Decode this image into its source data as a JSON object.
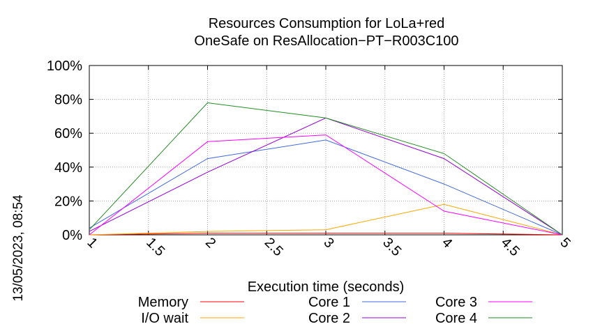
{
  "chart_data": {
    "type": "line",
    "title": "Resources Consumption for LoLa+red",
    "subtitle": "OneSafe on ResAllocation−PT−R003C100",
    "xlabel": "Execution time (seconds)",
    "ylabel": "",
    "side_label": "13/05/2023, 08:54",
    "xlim": [
      1,
      5
    ],
    "ylim": [
      0,
      100
    ],
    "x_ticks": [
      "1",
      "1.5",
      "2",
      "2.5",
      "3",
      "3.5",
      "4",
      "4.5",
      "5"
    ],
    "y_ticks": [
      "0%",
      "20%",
      "40%",
      "60%",
      "80%",
      "100%"
    ],
    "grid": true,
    "legend_position": "bottom",
    "x": [
      1,
      2,
      3,
      4,
      5
    ],
    "series": [
      {
        "name": "Memory",
        "color": "#ff0000",
        "values": [
          0,
          1,
          1,
          1,
          0
        ]
      },
      {
        "name": "I/O wait",
        "color": "#ffa500",
        "values": [
          0,
          2,
          3,
          18,
          0
        ]
      },
      {
        "name": "Core 1",
        "color": "#4169e1",
        "values": [
          4,
          45,
          56,
          30,
          0
        ]
      },
      {
        "name": "Core 2",
        "color": "#9400d3",
        "values": [
          2,
          37,
          69,
          45,
          0
        ]
      },
      {
        "name": "Core 3",
        "color": "#ff00ff",
        "values": [
          0,
          55,
          59,
          14,
          0
        ]
      },
      {
        "name": "Core 4",
        "color": "#228b22",
        "values": [
          3,
          78,
          69,
          48,
          0
        ]
      }
    ]
  }
}
